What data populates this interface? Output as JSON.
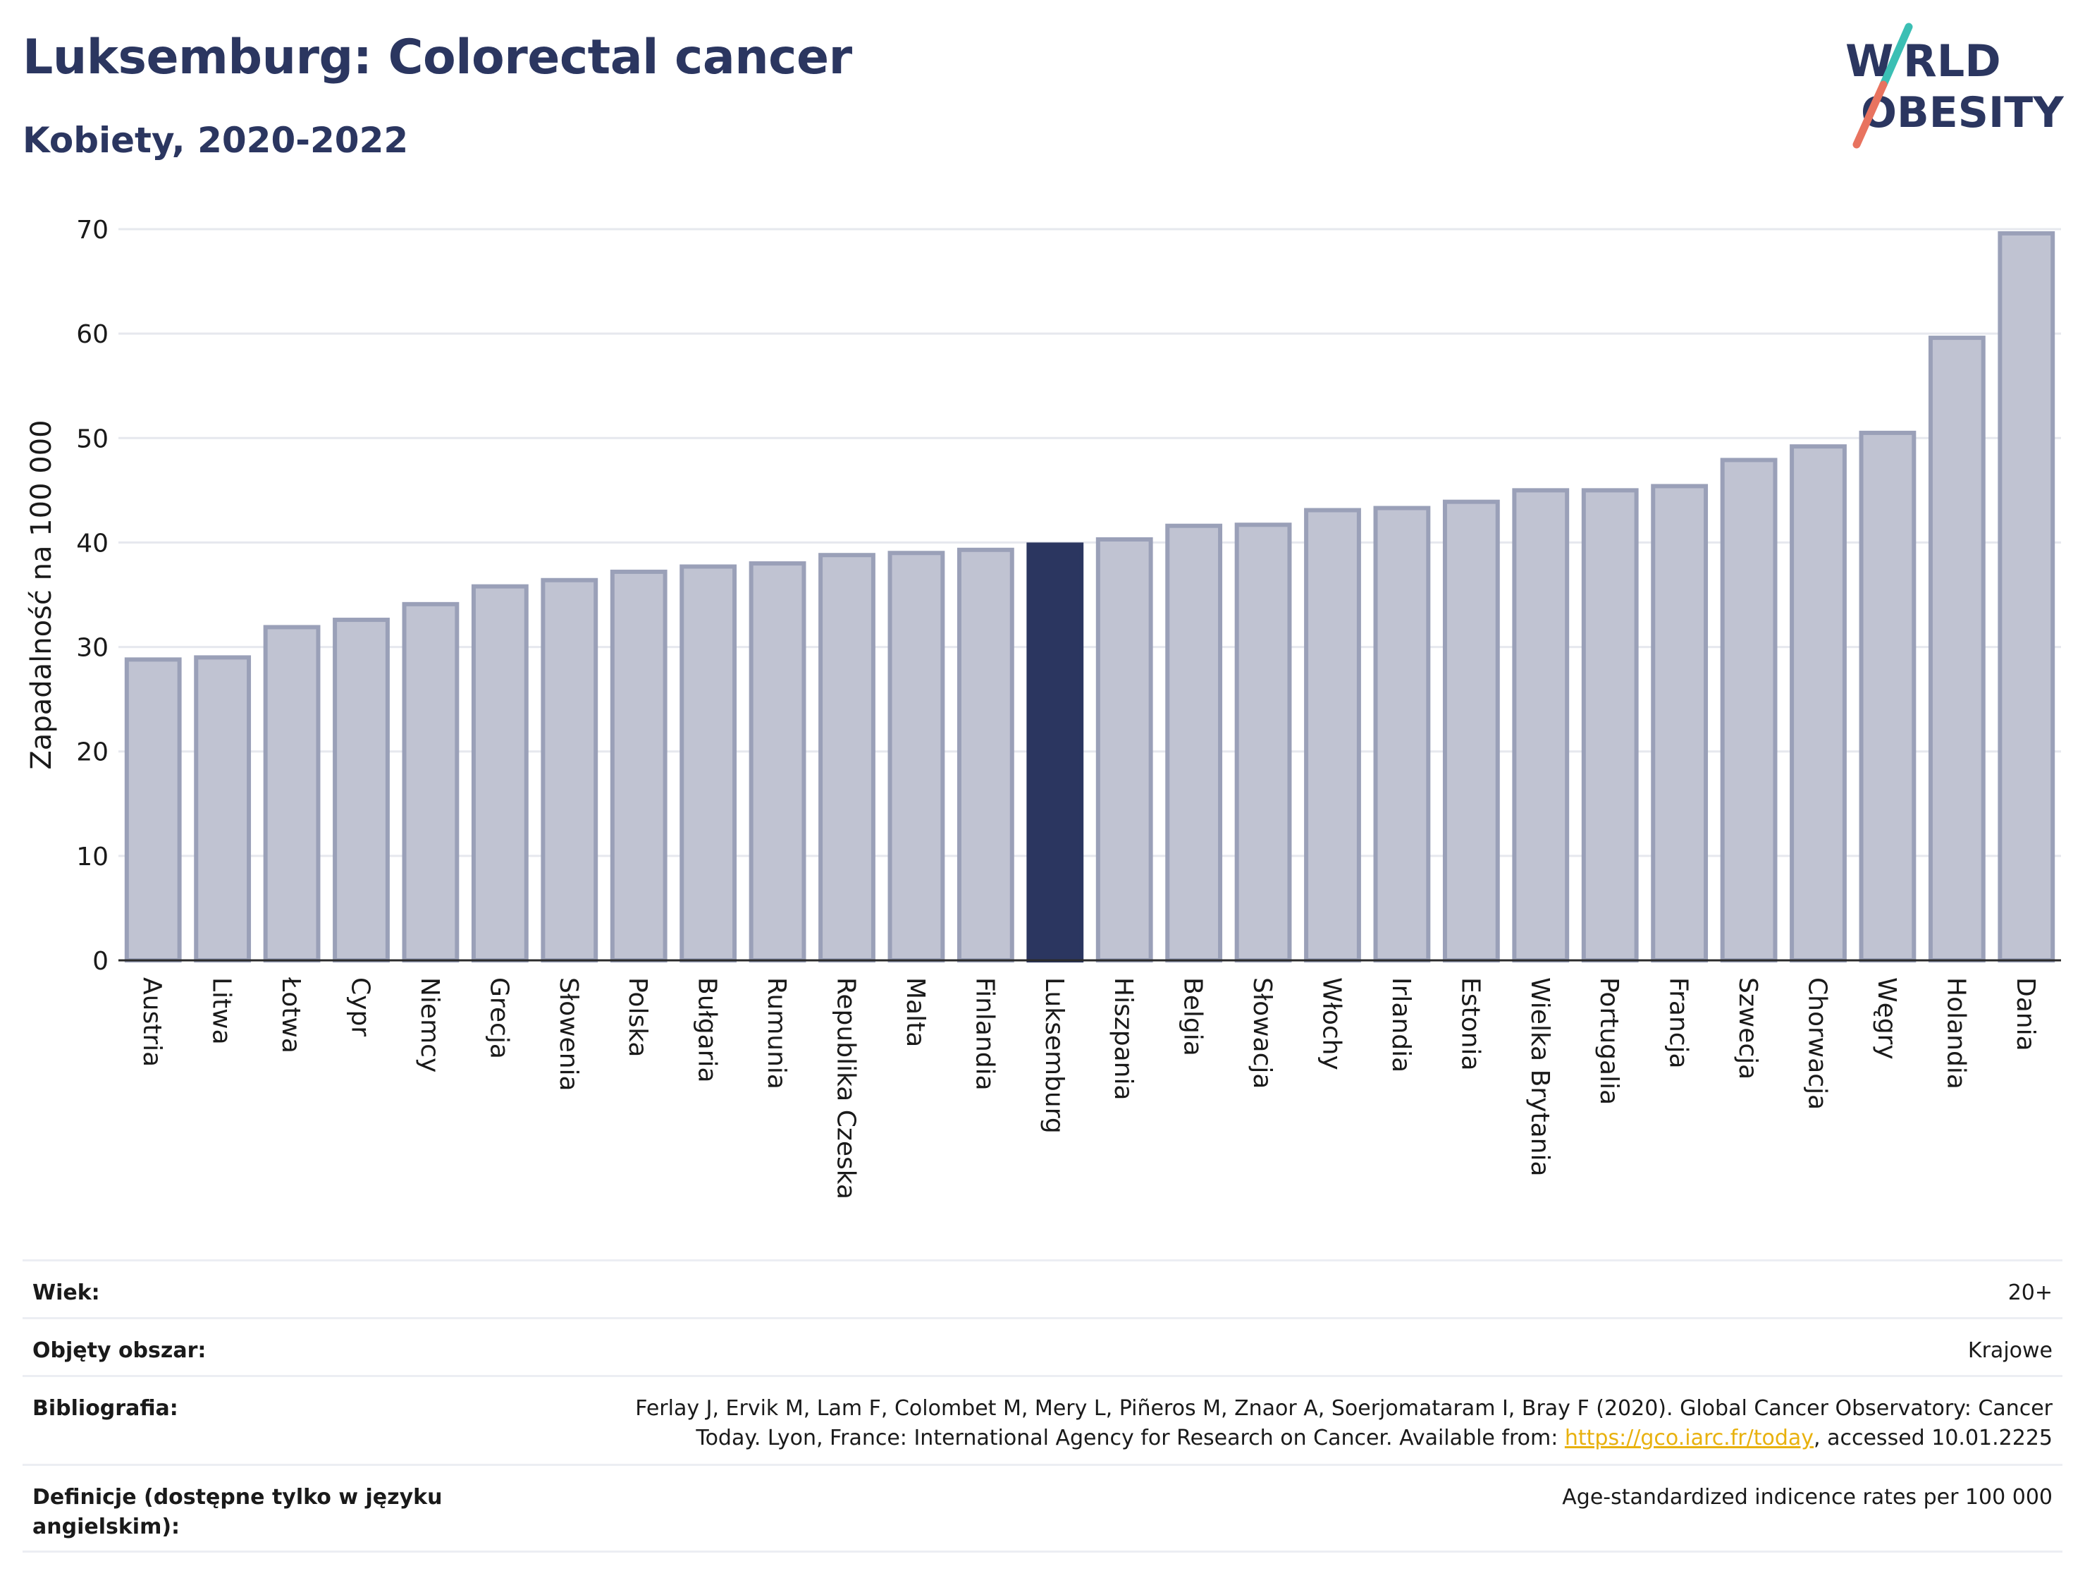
{
  "header": {
    "title": "Luksemburg: Colorectal cancer",
    "subtitle": "Kobiety, 2020-2022"
  },
  "logo": {
    "line1": "W",
    "line1b": "RLD",
    "line2": "OBESITY",
    "colors": {
      "text": "#2b3660",
      "slash_top": "#3bbfb4",
      "slash_bottom": "#e8735f"
    }
  },
  "colors": {
    "bar_fill": "#c0c3d2",
    "bar_stroke": "#9aa0b8",
    "highlight": "#2b3660",
    "grid": "#e6e8ee",
    "axis": "#2b2b2b"
  },
  "chart_data": {
    "type": "bar",
    "ylabel": "Zapadalność na 100 000",
    "ylim": [
      0,
      70
    ],
    "yticks": [
      0,
      10,
      20,
      30,
      40,
      50,
      60,
      70
    ],
    "grid": true,
    "highlight": "Luksemburg",
    "categories": [
      "Austria",
      "Litwa",
      "Łotwa",
      "Cypr",
      "Niemcy",
      "Grecja",
      "Słowenia",
      "Polska",
      "Bułgaria",
      "Rumunia",
      "Republika Czeska",
      "Malta",
      "Finlandia",
      "Luksemburg",
      "Hiszpania",
      "Belgia",
      "Słowacja",
      "Włochy",
      "Irlandia",
      "Estonia",
      "Wielka Brytania",
      "Portugalia",
      "Francja",
      "Szwecja",
      "Chorwacja",
      "Węgry",
      "Holandia",
      "Dania"
    ],
    "values": [
      28.8,
      29.0,
      31.9,
      32.6,
      34.1,
      35.8,
      36.4,
      37.2,
      37.7,
      38.0,
      38.8,
      39.0,
      39.3,
      39.8,
      40.3,
      41.6,
      41.7,
      43.1,
      43.3,
      43.9,
      45.0,
      45.0,
      45.4,
      47.9,
      49.2,
      50.5,
      59.6,
      69.6
    ]
  },
  "info": [
    {
      "label": "Wiek:",
      "value": "20+"
    },
    {
      "label": "Objęty obszar:",
      "value": "Krajowe"
    },
    {
      "label": "Bibliografia:",
      "value_line1": "Ferlay J, Ervik M, Lam F, Colombet M, Mery L, Piñeros M, Znaor A, Soerjomataram I, Bray F (2020). Global Cancer Observatory: Cancer",
      "value_line2_pre": "Today. Lyon, France: International Agency for Research on Cancer. Available from: ",
      "link": "https://gco.iarc.fr/today",
      "value_line2_post": ", accessed 10.01.2225"
    },
    {
      "label": "Definicje (dostępne tylko w języku angielskim):",
      "value": "Age-standardized indicence rates per 100 000"
    }
  ]
}
